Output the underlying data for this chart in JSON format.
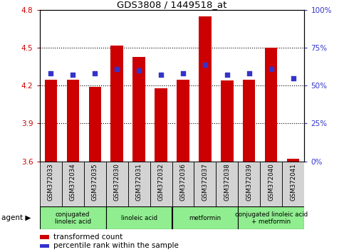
{
  "title": "GDS3808 / 1449518_at",
  "samples": [
    "GSM372033",
    "GSM372034",
    "GSM372035",
    "GSM372030",
    "GSM372031",
    "GSM372032",
    "GSM372036",
    "GSM372037",
    "GSM372038",
    "GSM372039",
    "GSM372040",
    "GSM372041"
  ],
  "transformed_count": [
    4.25,
    4.25,
    4.19,
    4.52,
    4.43,
    4.18,
    4.25,
    4.75,
    4.24,
    4.25,
    4.5,
    3.62
  ],
  "percentile_rank": [
    58,
    57,
    58,
    61,
    60,
    57,
    58,
    64,
    57,
    58,
    61,
    55
  ],
  "bar_bottom": 3.6,
  "ylim_left": [
    3.6,
    4.8
  ],
  "ylim_right": [
    0,
    100
  ],
  "yticks_left": [
    3.6,
    3.9,
    4.2,
    4.5,
    4.8
  ],
  "yticks_right": [
    0,
    25,
    50,
    75,
    100
  ],
  "bar_color": "#cc0000",
  "dot_color": "#3333cc",
  "agent_groups": [
    {
      "label": "conjugated\nlinoleic acid",
      "start": 0,
      "end": 3,
      "color": "#90ee90"
    },
    {
      "label": "linoleic acid",
      "start": 3,
      "end": 6,
      "color": "#90ee90"
    },
    {
      "label": "metformin",
      "start": 6,
      "end": 9,
      "color": "#90ee90"
    },
    {
      "label": "conjugated linoleic acid\n+ metformin",
      "start": 9,
      "end": 12,
      "color": "#90ee90"
    }
  ],
  "legend_bar_label": "transformed count",
  "legend_dot_label": "percentile rank within the sample",
  "tick_color_left": "#cc0000",
  "tick_color_right": "#3333cc",
  "bar_width": 0.55,
  "bg_color": "#d3d3d3",
  "label_cell_color": "#d3d3d3"
}
